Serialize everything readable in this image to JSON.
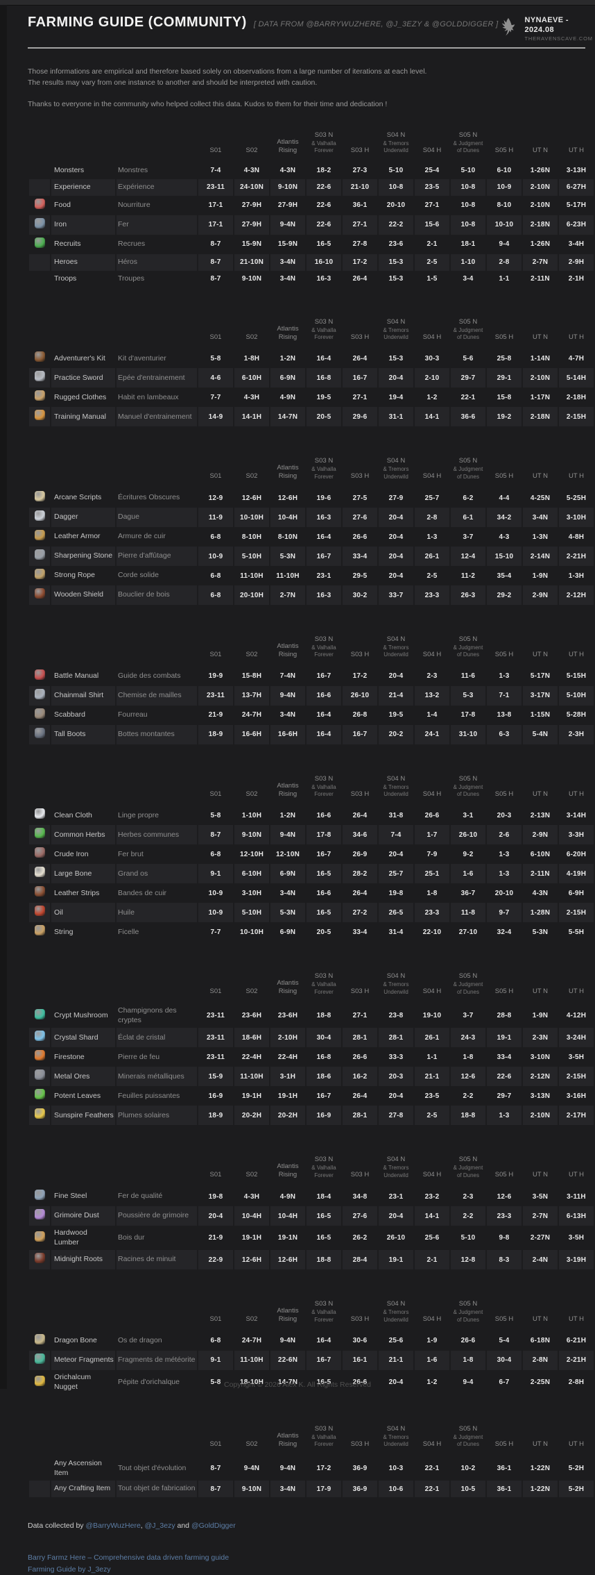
{
  "page": {
    "title": "FARMING GUIDE (COMMUNITY)",
    "subtitle": "[ DATA FROM @BARRYWUZHERE, @J_3EZY & @GOLDDIGGER ]",
    "logo": {
      "icon": "raven-icon",
      "name": "NYNAEVE - 2024.08",
      "site": "THERAVENSCAVE.COM"
    },
    "intro": {
      "line1": "Those informations are empirical and therefore based solely on observations from a large number of iterations at each level.",
      "line2": "The results may vary from one instance to another and should be interpreted with caution.",
      "line3": "Thanks to everyone in the community who helped collect this data. Kudos to them for their time and dedication !"
    },
    "copyright": "Copyright © 2026 Alex K. All Rights Reserved"
  },
  "colors": {
    "accent_link": "#5d7ea6",
    "stripe": "#252528",
    "background": "#1c1c1e"
  },
  "columns": [
    {
      "label": "S01",
      "sub": ""
    },
    {
      "label": "S02",
      "sub": ""
    },
    {
      "label": "Atlantis Rising",
      "sub": ""
    },
    {
      "label": "S03 N",
      "sub": "& Valhalla Forever"
    },
    {
      "label": "S03 H",
      "sub": ""
    },
    {
      "label": "S04 N",
      "sub": "& Tremors Underwild"
    },
    {
      "label": "S04 H",
      "sub": ""
    },
    {
      "label": "S05 N",
      "sub": "& Judgment of Dunes"
    },
    {
      "label": "S05 H",
      "sub": ""
    },
    {
      "label": "UT N",
      "sub": ""
    },
    {
      "label": "UT H",
      "sub": ""
    }
  ],
  "tables": [
    {
      "rows": [
        {
          "icon": null,
          "color": null,
          "en": "Monsters",
          "fr": "Monstres",
          "values": [
            "7-4",
            "4-3N",
            "4-3N",
            "18-2",
            "27-3",
            "5-10",
            "25-4",
            "5-10",
            "6-10",
            "1-26N",
            "3-13H"
          ]
        },
        {
          "icon": null,
          "color": null,
          "en": "Experience",
          "fr": "Expérience",
          "values": [
            "23-11",
            "24-10N",
            "9-10N",
            "22-6",
            "21-10",
            "10-8",
            "23-5",
            "10-8",
            "10-9",
            "2-10N",
            "6-27H"
          ]
        },
        {
          "icon": "food-icon",
          "color": "#d4615c",
          "en": "Food",
          "fr": "Nourriture",
          "values": [
            "17-1",
            "27-9H",
            "27-9H",
            "22-6",
            "36-1",
            "20-10",
            "27-1",
            "10-8",
            "8-10",
            "2-10N",
            "5-17H"
          ]
        },
        {
          "icon": "iron-icon",
          "color": "#7d93a8",
          "en": "Iron",
          "fr": "Fer",
          "values": [
            "17-1",
            "27-9H",
            "9-4N",
            "22-6",
            "27-1",
            "22-2",
            "15-6",
            "10-8",
            "10-10",
            "2-18N",
            "6-23H"
          ]
        },
        {
          "icon": "recruits-icon",
          "color": "#4caf50",
          "en": "Recruits",
          "fr": "Recrues",
          "values": [
            "8-7",
            "15-9N",
            "15-9N",
            "16-5",
            "27-8",
            "23-6",
            "2-1",
            "18-1",
            "9-4",
            "1-26N",
            "3-4H"
          ]
        },
        {
          "icon": null,
          "color": null,
          "en": "Heroes",
          "fr": "Héros",
          "values": [
            "8-7",
            "21-10N",
            "3-4N",
            "16-10",
            "17-2",
            "15-3",
            "2-5",
            "1-10",
            "2-8",
            "2-7N",
            "2-9H"
          ]
        },
        {
          "icon": null,
          "color": null,
          "en": "Troops",
          "fr": "Troupes",
          "values": [
            "8-7",
            "9-10N",
            "3-4N",
            "16-3",
            "26-4",
            "15-3",
            "1-5",
            "3-4",
            "1-1",
            "2-11N",
            "2-1H"
          ]
        }
      ]
    },
    {
      "rows": [
        {
          "icon": "adventurers-kit-icon",
          "color": "#8a5a33",
          "en": "Adventurer's Kit",
          "fr": "Kit d'aventurier",
          "values": [
            "5-8",
            "1-8H",
            "1-2N",
            "16-4",
            "26-4",
            "15-3",
            "30-3",
            "5-6",
            "25-8",
            "1-14N",
            "4-7H"
          ]
        },
        {
          "icon": "practice-sword-icon",
          "color": "#b8bcc4",
          "en": "Practice Sword",
          "fr": "Epée d'entrainement",
          "values": [
            "4-6",
            "6-10H",
            "6-9N",
            "16-8",
            "16-7",
            "20-4",
            "2-10",
            "29-7",
            "29-1",
            "2-10N",
            "5-14H"
          ]
        },
        {
          "icon": "rugged-clothes-icon",
          "color": "#c9a26a",
          "en": "Rugged Clothes",
          "fr": "Habit en lambeaux",
          "values": [
            "7-7",
            "4-3H",
            "4-9N",
            "19-5",
            "27-1",
            "19-4",
            "1-2",
            "22-1",
            "15-8",
            "1-17N",
            "2-18H"
          ]
        },
        {
          "icon": "training-manual-icon",
          "color": "#d8953f",
          "en": "Training Manual",
          "fr": "Manuel d'entrainement",
          "values": [
            "14-9",
            "14-1H",
            "14-7N",
            "20-5",
            "29-6",
            "31-1",
            "14-1",
            "36-6",
            "19-2",
            "2-18N",
            "2-15H"
          ]
        }
      ]
    },
    {
      "rows": [
        {
          "icon": "arcane-scripts-icon",
          "color": "#d8c9a0",
          "en": "Arcane Scripts",
          "fr": "Écritures Obscures",
          "values": [
            "12-9",
            "12-6H",
            "12-6H",
            "19-6",
            "27-5",
            "27-9",
            "25-7",
            "6-2",
            "4-4",
            "4-25N",
            "5-25H"
          ]
        },
        {
          "icon": "dagger-icon",
          "color": "#cdd2da",
          "en": "Dagger",
          "fr": "Dague",
          "values": [
            "11-9",
            "10-10H",
            "10-4H",
            "16-3",
            "27-6",
            "20-4",
            "2-8",
            "6-1",
            "34-2",
            "3-4N",
            "3-10H"
          ]
        },
        {
          "icon": "leather-armor-icon",
          "color": "#c69b4e",
          "en": "Leather Armor",
          "fr": "Armure de cuir",
          "values": [
            "6-8",
            "8-10H",
            "8-10N",
            "16-4",
            "26-6",
            "20-4",
            "1-3",
            "3-7",
            "4-3",
            "1-3N",
            "4-8H"
          ]
        },
        {
          "icon": "sharpening-stone-icon",
          "color": "#9aa0a8",
          "en": "Sharpening Stone",
          "fr": "Pierre d'affûtage",
          "values": [
            "10-9",
            "5-10H",
            "5-3N",
            "16-7",
            "33-4",
            "20-4",
            "26-1",
            "12-4",
            "15-10",
            "2-14N",
            "2-21H"
          ]
        },
        {
          "icon": "strong-rope-icon",
          "color": "#c2a36a",
          "en": "Strong Rope",
          "fr": "Corde solide",
          "values": [
            "6-8",
            "11-10H",
            "11-10H",
            "23-1",
            "29-5",
            "20-4",
            "2-5",
            "11-2",
            "35-4",
            "1-9N",
            "1-3H"
          ]
        },
        {
          "icon": "wooden-shield-icon",
          "color": "#8b4a2f",
          "en": "Wooden Shield",
          "fr": "Bouclier de bois",
          "values": [
            "6-8",
            "20-10H",
            "2-7N",
            "16-3",
            "30-2",
            "33-7",
            "23-3",
            "26-3",
            "29-2",
            "2-9N",
            "2-12H"
          ]
        }
      ]
    },
    {
      "rows": [
        {
          "icon": "battle-manual-icon",
          "color": "#c75050",
          "en": "Battle Manual",
          "fr": "Guide des combats",
          "values": [
            "19-9",
            "15-8H",
            "7-4N",
            "16-7",
            "17-2",
            "20-4",
            "2-3",
            "11-6",
            "1-3",
            "5-17N",
            "5-15H"
          ]
        },
        {
          "icon": "chainmail-shirt-icon",
          "color": "#aab2bd",
          "en": "Chainmail Shirt",
          "fr": "Chemise de mailles",
          "values": [
            "23-11",
            "13-7H",
            "9-4N",
            "16-6",
            "26-10",
            "21-4",
            "13-2",
            "5-3",
            "7-1",
            "3-17N",
            "5-10H"
          ]
        },
        {
          "icon": "scabbard-icon",
          "color": "#9a8a7a",
          "en": "Scabbard",
          "fr": "Fourreau",
          "values": [
            "21-9",
            "24-7H",
            "3-4N",
            "16-4",
            "26-8",
            "19-5",
            "1-4",
            "17-8",
            "13-8",
            "1-15N",
            "5-28H"
          ]
        },
        {
          "icon": "tall-boots-icon",
          "color": "#6a7280",
          "en": "Tall Boots",
          "fr": "Bottes montantes",
          "values": [
            "18-9",
            "16-6H",
            "16-6H",
            "16-4",
            "16-7",
            "20-2",
            "24-1",
            "31-10",
            "6-3",
            "5-4N",
            "2-3H"
          ]
        }
      ]
    },
    {
      "rows": [
        {
          "icon": "clean-cloth-icon",
          "color": "#e8eaee",
          "en": "Clean Cloth",
          "fr": "Linge propre",
          "values": [
            "5-8",
            "1-10H",
            "1-2N",
            "16-6",
            "26-4",
            "31-8",
            "26-6",
            "3-1",
            "20-3",
            "2-13N",
            "3-14H"
          ]
        },
        {
          "icon": "common-herbs-icon",
          "color": "#57b94e",
          "en": "Common Herbs",
          "fr": "Herbes communes",
          "values": [
            "8-7",
            "9-10N",
            "9-4N",
            "17-8",
            "34-6",
            "7-4",
            "1-7",
            "26-10",
            "2-6",
            "2-9N",
            "3-3H"
          ]
        },
        {
          "icon": "crude-iron-icon",
          "color": "#9b6b66",
          "en": "Crude Iron",
          "fr": "Fer brut",
          "values": [
            "6-8",
            "12-10H",
            "12-10N",
            "16-7",
            "26-9",
            "20-4",
            "7-9",
            "9-2",
            "1-3",
            "6-10N",
            "6-20H"
          ]
        },
        {
          "icon": "large-bone-icon",
          "color": "#e6e0d2",
          "en": "Large Bone",
          "fr": "Grand os",
          "values": [
            "9-1",
            "6-10H",
            "6-9N",
            "16-5",
            "28-2",
            "25-7",
            "25-1",
            "1-6",
            "1-3",
            "2-11N",
            "4-19H"
          ]
        },
        {
          "icon": "leather-strips-icon",
          "color": "#8a4f33",
          "en": "Leather Strips",
          "fr": "Bandes de cuir",
          "values": [
            "10-9",
            "3-10H",
            "3-4N",
            "16-6",
            "26-4",
            "19-8",
            "1-8",
            "36-7",
            "20-10",
            "4-3N",
            "6-9H"
          ]
        },
        {
          "icon": "oil-icon",
          "color": "#c0452e",
          "en": "Oil",
          "fr": "Huile",
          "values": [
            "10-9",
            "5-10H",
            "5-3N",
            "16-5",
            "27-2",
            "26-5",
            "23-3",
            "11-8",
            "9-7",
            "1-28N",
            "2-15H"
          ]
        },
        {
          "icon": "string-icon",
          "color": "#c9a064",
          "en": "String",
          "fr": "Ficelle",
          "values": [
            "7-7",
            "10-10H",
            "6-9N",
            "20-5",
            "33-4",
            "31-4",
            "22-10",
            "27-10",
            "32-4",
            "5-3N",
            "5-5H"
          ]
        }
      ]
    },
    {
      "rows": [
        {
          "icon": "crypt-mushroom-icon",
          "color": "#3fbfa0",
          "en": "Crypt Mushroom",
          "fr": "Champignons des cryptes",
          "values": [
            "23-11",
            "23-6H",
            "23-6H",
            "18-8",
            "27-1",
            "23-8",
            "19-10",
            "3-7",
            "28-8",
            "1-9N",
            "4-12H"
          ]
        },
        {
          "icon": "crystal-shard-icon",
          "color": "#7ec3ea",
          "en": "Crystal Shard",
          "fr": "Éclat de cristal",
          "values": [
            "23-11",
            "18-6H",
            "2-10H",
            "30-4",
            "28-1",
            "28-1",
            "26-1",
            "24-3",
            "19-1",
            "2-3N",
            "3-24H"
          ]
        },
        {
          "icon": "firestone-icon",
          "color": "#e07a2e",
          "en": "Firestone",
          "fr": "Pierre de feu",
          "values": [
            "23-11",
            "22-4H",
            "22-4H",
            "16-8",
            "26-6",
            "33-3",
            "1-1",
            "1-8",
            "33-4",
            "3-10N",
            "3-5H"
          ]
        },
        {
          "icon": "metal-ores-icon",
          "color": "#8b8f99",
          "en": "Metal Ores",
          "fr": "Minerais métalliques",
          "values": [
            "15-9",
            "11-10H",
            "3-1H",
            "18-6",
            "16-2",
            "20-3",
            "21-1",
            "12-6",
            "22-6",
            "2-12N",
            "2-15H"
          ]
        },
        {
          "icon": "potent-leaves-icon",
          "color": "#66c44a",
          "en": "Potent Leaves",
          "fr": "Feuilles puissantes",
          "values": [
            "16-9",
            "19-1H",
            "19-1H",
            "16-7",
            "26-4",
            "20-4",
            "23-5",
            "2-2",
            "29-7",
            "3-13N",
            "3-16H"
          ]
        },
        {
          "icon": "sunspire-feathers-icon",
          "color": "#e8c84a",
          "en": "Sunspire Feathers",
          "fr": "Plumes solaires",
          "values": [
            "18-9",
            "20-2H",
            "20-2H",
            "16-9",
            "28-1",
            "27-8",
            "2-5",
            "18-8",
            "1-3",
            "2-10N",
            "2-17H"
          ]
        }
      ]
    },
    {
      "rows": [
        {
          "icon": "fine-steel-icon",
          "color": "#8fa3b8",
          "en": "Fine Steel",
          "fr": "Fer de qualité",
          "values": [
            "19-8",
            "4-3H",
            "4-9N",
            "18-4",
            "34-8",
            "23-1",
            "23-2",
            "2-3",
            "12-6",
            "3-5N",
            "3-11H"
          ]
        },
        {
          "icon": "grimoire-dust-icon",
          "color": "#b48ad6",
          "en": "Grimoire Dust",
          "fr": "Poussière de grimoire",
          "values": [
            "20-4",
            "10-4H",
            "10-4H",
            "16-5",
            "27-6",
            "20-4",
            "14-1",
            "2-2",
            "23-3",
            "2-7N",
            "6-13H"
          ]
        },
        {
          "icon": "hardwood-lumber-icon",
          "color": "#d0a05a",
          "en": "Hardwood Lumber",
          "fr": "Bois dur",
          "values": [
            "21-9",
            "19-1H",
            "19-1N",
            "16-5",
            "26-2",
            "26-10",
            "25-6",
            "5-10",
            "9-8",
            "2-27N",
            "3-5H"
          ]
        },
        {
          "icon": "midnight-roots-icon",
          "color": "#7a3a2a",
          "en": "Midnight Roots",
          "fr": "Racines de minuit",
          "values": [
            "22-9",
            "12-6H",
            "12-6H",
            "18-8",
            "28-4",
            "19-1",
            "2-1",
            "12-8",
            "8-3",
            "2-4N",
            "3-19H"
          ]
        }
      ]
    },
    {
      "rows": [
        {
          "icon": "dragon-bone-icon",
          "color": "#c8b88a",
          "en": "Dragon Bone",
          "fr": "Os de dragon",
          "values": [
            "6-8",
            "24-7H",
            "9-4N",
            "16-4",
            "30-6",
            "25-6",
            "1-9",
            "26-6",
            "5-4",
            "6-18N",
            "6-21H"
          ]
        },
        {
          "icon": "meteor-fragments-icon",
          "color": "#4ab89a",
          "en": "Meteor Fragments",
          "fr": "Fragments de météorite",
          "values": [
            "9-1",
            "11-10H",
            "22-6N",
            "16-7",
            "16-1",
            "21-1",
            "1-6",
            "1-8",
            "30-4",
            "2-8N",
            "2-21H"
          ]
        },
        {
          "icon": "orichalcum-nugget-icon",
          "color": "#e0b840",
          "en": "Orichalcum Nugget",
          "fr": "Pépite d'orichalque",
          "values": [
            "5-8",
            "18-10H",
            "14-7N",
            "16-5",
            "26-6",
            "20-4",
            "1-2",
            "9-4",
            "6-7",
            "2-25N",
            "2-8H"
          ]
        }
      ]
    },
    {
      "rows": [
        {
          "icon": null,
          "color": null,
          "en": "Any Ascension Item",
          "fr": "Tout objet d'évolution",
          "values": [
            "8-7",
            "9-4N",
            "9-4N",
            "17-2",
            "36-9",
            "10-3",
            "22-1",
            "10-2",
            "36-1",
            "1-22N",
            "5-2H"
          ]
        },
        {
          "icon": null,
          "color": null,
          "en": "Any Crafting Item",
          "fr": "Tout objet de fabrication",
          "values": [
            "8-7",
            "9-10N",
            "3-4N",
            "17-9",
            "36-9",
            "10-6",
            "22-1",
            "10-5",
            "36-1",
            "1-22N",
            "5-2H"
          ]
        }
      ]
    }
  ],
  "footer": {
    "credit_parts": [
      {
        "text": "Data collected by "
      },
      {
        "link": "@BarryWuzHere"
      },
      {
        "text": ", "
      },
      {
        "link": "@J_3ezy"
      },
      {
        "text": " and "
      },
      {
        "link": "@GoldDigger"
      }
    ],
    "links": [
      "Barry Farmz Here – Comprehensive data driven farming guide",
      "Farming Guide by J_3ezy"
    ]
  }
}
